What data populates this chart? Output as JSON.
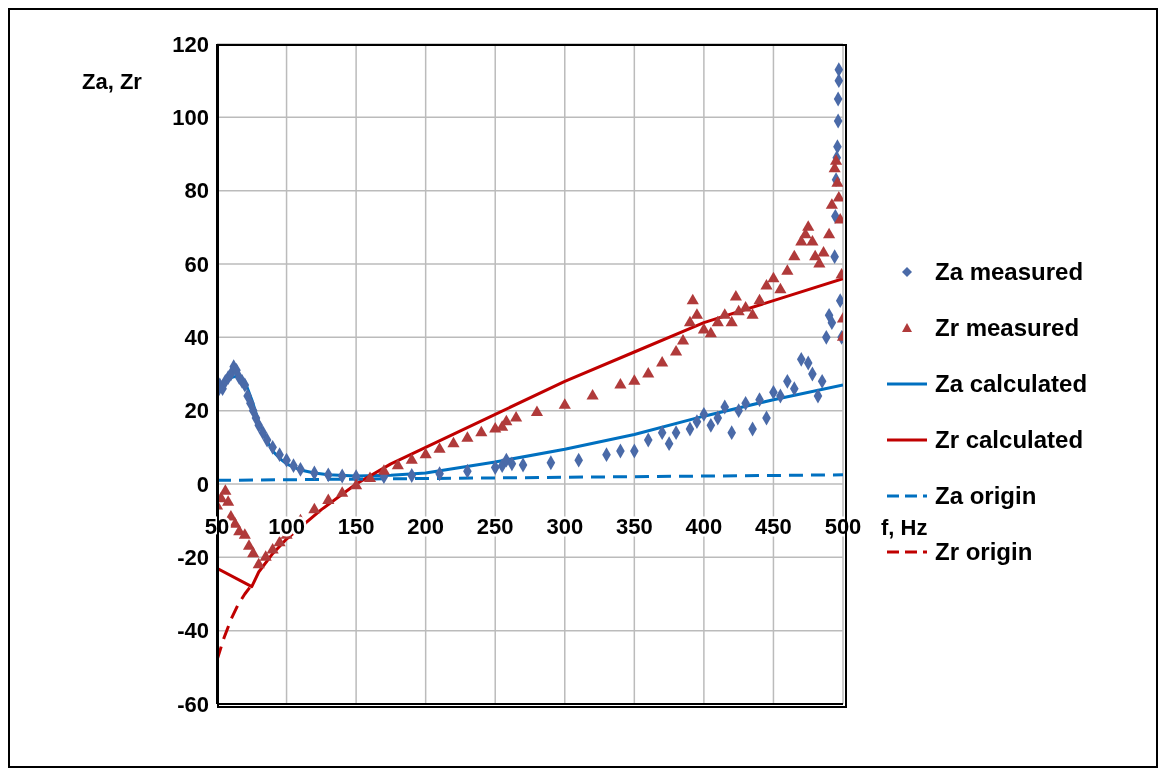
{
  "chart_data": {
    "type": "scatter",
    "xlabel": "f, Hz",
    "ylabel": "Za, Zr",
    "xlim": [
      50,
      500
    ],
    "xticks": [
      50,
      100,
      150,
      200,
      250,
      300,
      350,
      400,
      450,
      500
    ],
    "ylim": [
      -60,
      120
    ],
    "yticks": [
      -60,
      -40,
      -20,
      0,
      20,
      40,
      60,
      80,
      100,
      120
    ],
    "grid": true,
    "legend": "right",
    "series": [
      {
        "name": "Za measured",
        "marker": "diamond",
        "color": "#4a6aa8",
        "x": [
          50,
          52,
          54,
          56,
          58,
          60,
          62,
          64,
          66,
          68,
          70,
          72,
          74,
          76,
          78,
          80,
          83,
          86,
          90,
          95,
          100,
          105,
          110,
          120,
          130,
          140,
          150,
          170,
          190,
          210,
          230,
          250,
          255,
          258,
          262,
          270,
          290,
          310,
          330,
          340,
          350,
          360,
          370,
          375,
          380,
          390,
          395,
          400,
          405,
          410,
          415,
          420,
          425,
          430,
          435,
          440,
          445,
          450,
          455,
          460,
          465,
          470,
          475,
          478,
          482,
          485,
          488,
          490,
          492,
          494,
          494.5,
          495,
          495.5,
          496,
          496.5,
          496.5,
          497,
          497,
          498,
          499
        ],
        "values": [
          25,
          27,
          26,
          28,
          29,
          30,
          32,
          31,
          29,
          28,
          27,
          24,
          22,
          20,
          18,
          16,
          14,
          12,
          10,
          8,
          6.5,
          5,
          4,
          3,
          2.5,
          2.2,
          2,
          2,
          2.3,
          2.8,
          3.5,
          4.5,
          5,
          6.5,
          5.5,
          5.2,
          5.8,
          6.5,
          8,
          9,
          9,
          12,
          14,
          11,
          14,
          15,
          17,
          19,
          16,
          18,
          21,
          14,
          20,
          22,
          15,
          23,
          18,
          25,
          24,
          28,
          26,
          34,
          33,
          30,
          24,
          28,
          40,
          46,
          44,
          62,
          73,
          83,
          89,
          92,
          99,
          105,
          110,
          113,
          50,
          40
        ]
      },
      {
        "name": "Zr measured",
        "marker": "triangle",
        "color": "#b03a3a",
        "x": [
          50,
          53,
          56,
          58,
          60,
          63,
          66,
          70,
          73,
          76,
          80,
          85,
          90,
          95,
          100,
          110,
          120,
          130,
          140,
          150,
          160,
          170,
          180,
          190,
          200,
          210,
          220,
          230,
          240,
          250,
          255,
          258,
          265,
          280,
          300,
          320,
          340,
          350,
          360,
          370,
          380,
          385,
          390,
          392,
          395,
          400,
          405,
          410,
          415,
          420,
          423,
          425,
          430,
          435,
          440,
          445,
          450,
          455,
          460,
          465,
          470,
          473,
          475,
          478,
          480,
          483,
          486,
          490,
          492,
          494,
          495,
          496,
          497,
          498,
          499,
          500,
          500
        ],
        "values": [
          -6,
          -4,
          -2,
          -5,
          -9,
          -11,
          -13,
          -14,
          -17,
          -19,
          -22,
          -20,
          -18,
          -16,
          -14,
          -10,
          -7,
          -4.5,
          -2.5,
          -0.5,
          1.5,
          3.5,
          5,
          6.5,
          8,
          9.5,
          11,
          12.5,
          14,
          15,
          15.5,
          17,
          18,
          19.5,
          21.5,
          24,
          27,
          28,
          30,
          33,
          36,
          39,
          44,
          50,
          46,
          42,
          41,
          44,
          46,
          44,
          51,
          47,
          48,
          46,
          50,
          54,
          56,
          53,
          58,
          62,
          66,
          68,
          70,
          66,
          62,
          60,
          63,
          68,
          76,
          86,
          88,
          82,
          78,
          72,
          57,
          45,
          40
        ]
      },
      {
        "name": "Za calculated",
        "type": "line",
        "marker": "none",
        "line_style": "solid",
        "color": "#0070c0",
        "x": [
          50,
          55,
          60,
          65,
          70,
          75,
          80,
          85,
          90,
          95,
          100,
          110,
          120,
          130,
          150,
          175,
          200,
          250,
          300,
          350,
          400,
          450,
          500
        ],
        "values": [
          26,
          27.5,
          29,
          29.5,
          28,
          23,
          17,
          12.5,
          9,
          7,
          5.5,
          3.8,
          3,
          2.5,
          2.2,
          2.4,
          3,
          6,
          9.5,
          13.5,
          18.5,
          23,
          27
        ]
      },
      {
        "name": "Zr calculated",
        "type": "line",
        "marker": "none",
        "line_style": "solid",
        "color": "#c00000",
        "x": [
          50,
          75,
          80,
          90,
          100,
          125,
          150,
          175,
          200,
          250,
          300,
          350,
          400,
          450,
          500
        ],
        "values": [
          -23,
          -28,
          -24,
          -19,
          -15,
          -7,
          0,
          5.5,
          10,
          19,
          28,
          36,
          44,
          50,
          56
        ]
      },
      {
        "name": "Za origin",
        "type": "line",
        "marker": "none",
        "line_style": "dashed",
        "color": "#0070c0",
        "x": [
          50,
          500
        ],
        "values": [
          1,
          2.5
        ]
      },
      {
        "name": "Zr origin",
        "type": "line",
        "marker": "none",
        "line_style": "dashed",
        "color": "#c00000",
        "x": [
          50,
          55,
          60,
          65,
          70,
          75
        ],
        "values": [
          -48,
          -42,
          -37,
          -33,
          -30,
          -27.5
        ]
      }
    ]
  }
}
